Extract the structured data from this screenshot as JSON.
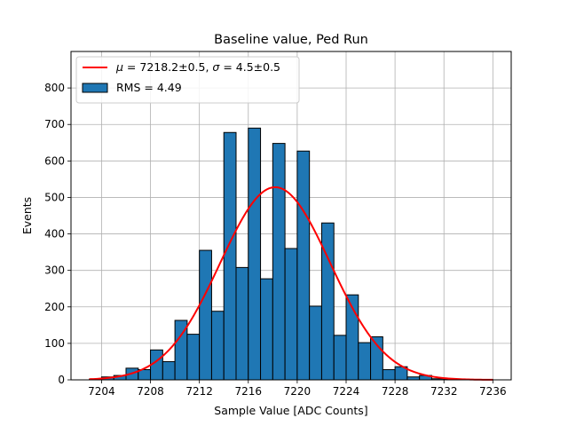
{
  "chart_data": {
    "type": "bar",
    "title": "Baseline value, Ped Run",
    "xlabel": "Sample Value [ADC Counts]",
    "ylabel": "Events",
    "xlim": [
      7201.5,
      7237.5
    ],
    "ylim": [
      0,
      900
    ],
    "grid": true,
    "legend_position": "top-left",
    "x_ticks": [
      7204,
      7208,
      7212,
      7216,
      7220,
      7224,
      7228,
      7232,
      7236
    ],
    "y_ticks": [
      0,
      100,
      200,
      300,
      400,
      500,
      600,
      700,
      800
    ],
    "bins": {
      "edges": [
        7203,
        7204,
        7205,
        7206,
        7207,
        7208,
        7209,
        7210,
        7211,
        7212,
        7213,
        7214,
        7215,
        7216,
        7217,
        7218,
        7219,
        7220,
        7221,
        7222,
        7223,
        7224,
        7225,
        7226,
        7227,
        7228,
        7229,
        7230,
        7231,
        7232,
        7233,
        7234,
        7235,
        7236
      ],
      "counts": [
        2,
        8,
        12,
        32,
        28,
        82,
        50,
        163,
        125,
        355,
        188,
        678,
        308,
        690,
        277,
        648,
        360,
        627,
        202,
        430,
        122,
        233,
        102,
        118,
        28,
        36,
        8,
        12,
        3,
        2,
        1,
        1,
        1
      ]
    },
    "series": [
      {
        "name": "RMS = 4.49",
        "kind": "histogram",
        "color": "#1f77b4",
        "edgecolor": "#000000"
      },
      {
        "name": "$\\mu = 7218.2\\pm0.5$, $\\sigma = 4.5\\pm0.5$",
        "kind": "gaussian-fit",
        "color": "#ff0000",
        "mu": 7218.2,
        "sigma": 4.5,
        "amplitude": 528,
        "x_range": [
          7203,
          7236
        ]
      }
    ],
    "legend": {
      "fit_label_mu": "μ",
      "fit_label_rest1": " = 7218.2±0.5, ",
      "fit_label_sigma": "σ",
      "fit_label_rest2": " = 4.5±0.5",
      "hist_label": "RMS = 4.49"
    }
  }
}
